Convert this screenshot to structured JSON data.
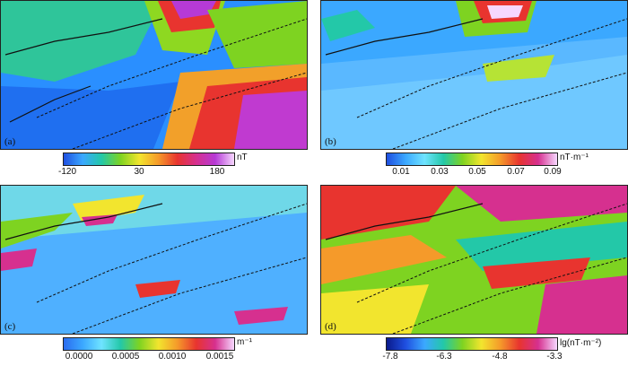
{
  "panels": [
    {
      "label": "(a)",
      "unit": "nT",
      "ticks": [
        "-120",
        "30",
        "180"
      ],
      "colors": [
        "#1f4fe0",
        "#3ba8ff",
        "#23c8a8",
        "#7ed321",
        "#f2e52e",
        "#f59a2a",
        "#e8342f",
        "#d6308f",
        "#b63ad6",
        "#f6d7ff"
      ]
    },
    {
      "label": "(b)",
      "unit": "nT·m⁻¹",
      "ticks": [
        "0.01",
        "0.03",
        "0.05",
        "0.07",
        "0.09"
      ],
      "colors": [
        "#1f4fe0",
        "#3ba8ff",
        "#6fe3ff",
        "#23c8a8",
        "#7ed321",
        "#f2e52e",
        "#f59a2a",
        "#e8342f",
        "#d6308f",
        "#f6d7ff"
      ]
    },
    {
      "label": "(c)",
      "unit": "m⁻¹",
      "ticks": [
        "0.0000",
        "0.0005",
        "0.0010",
        "0.0015"
      ],
      "colors": [
        "#2a6cf0",
        "#3ba8ff",
        "#6fe3ff",
        "#23c8a8",
        "#7ed321",
        "#f2e52e",
        "#f59a2a",
        "#e8342f",
        "#d6308f",
        "#f6d7ff"
      ]
    },
    {
      "label": "(d)",
      "unit": "lg(nT·m⁻²)",
      "ticks": [
        "-7.8",
        "-6.3",
        "-4.8",
        "-3.3"
      ],
      "colors": [
        "#0a1a8c",
        "#1f4fe0",
        "#3ba8ff",
        "#23c8a8",
        "#7ed321",
        "#f2e52e",
        "#f59a2a",
        "#e8342f",
        "#d6308f",
        "#f6d7ff"
      ]
    }
  ]
}
